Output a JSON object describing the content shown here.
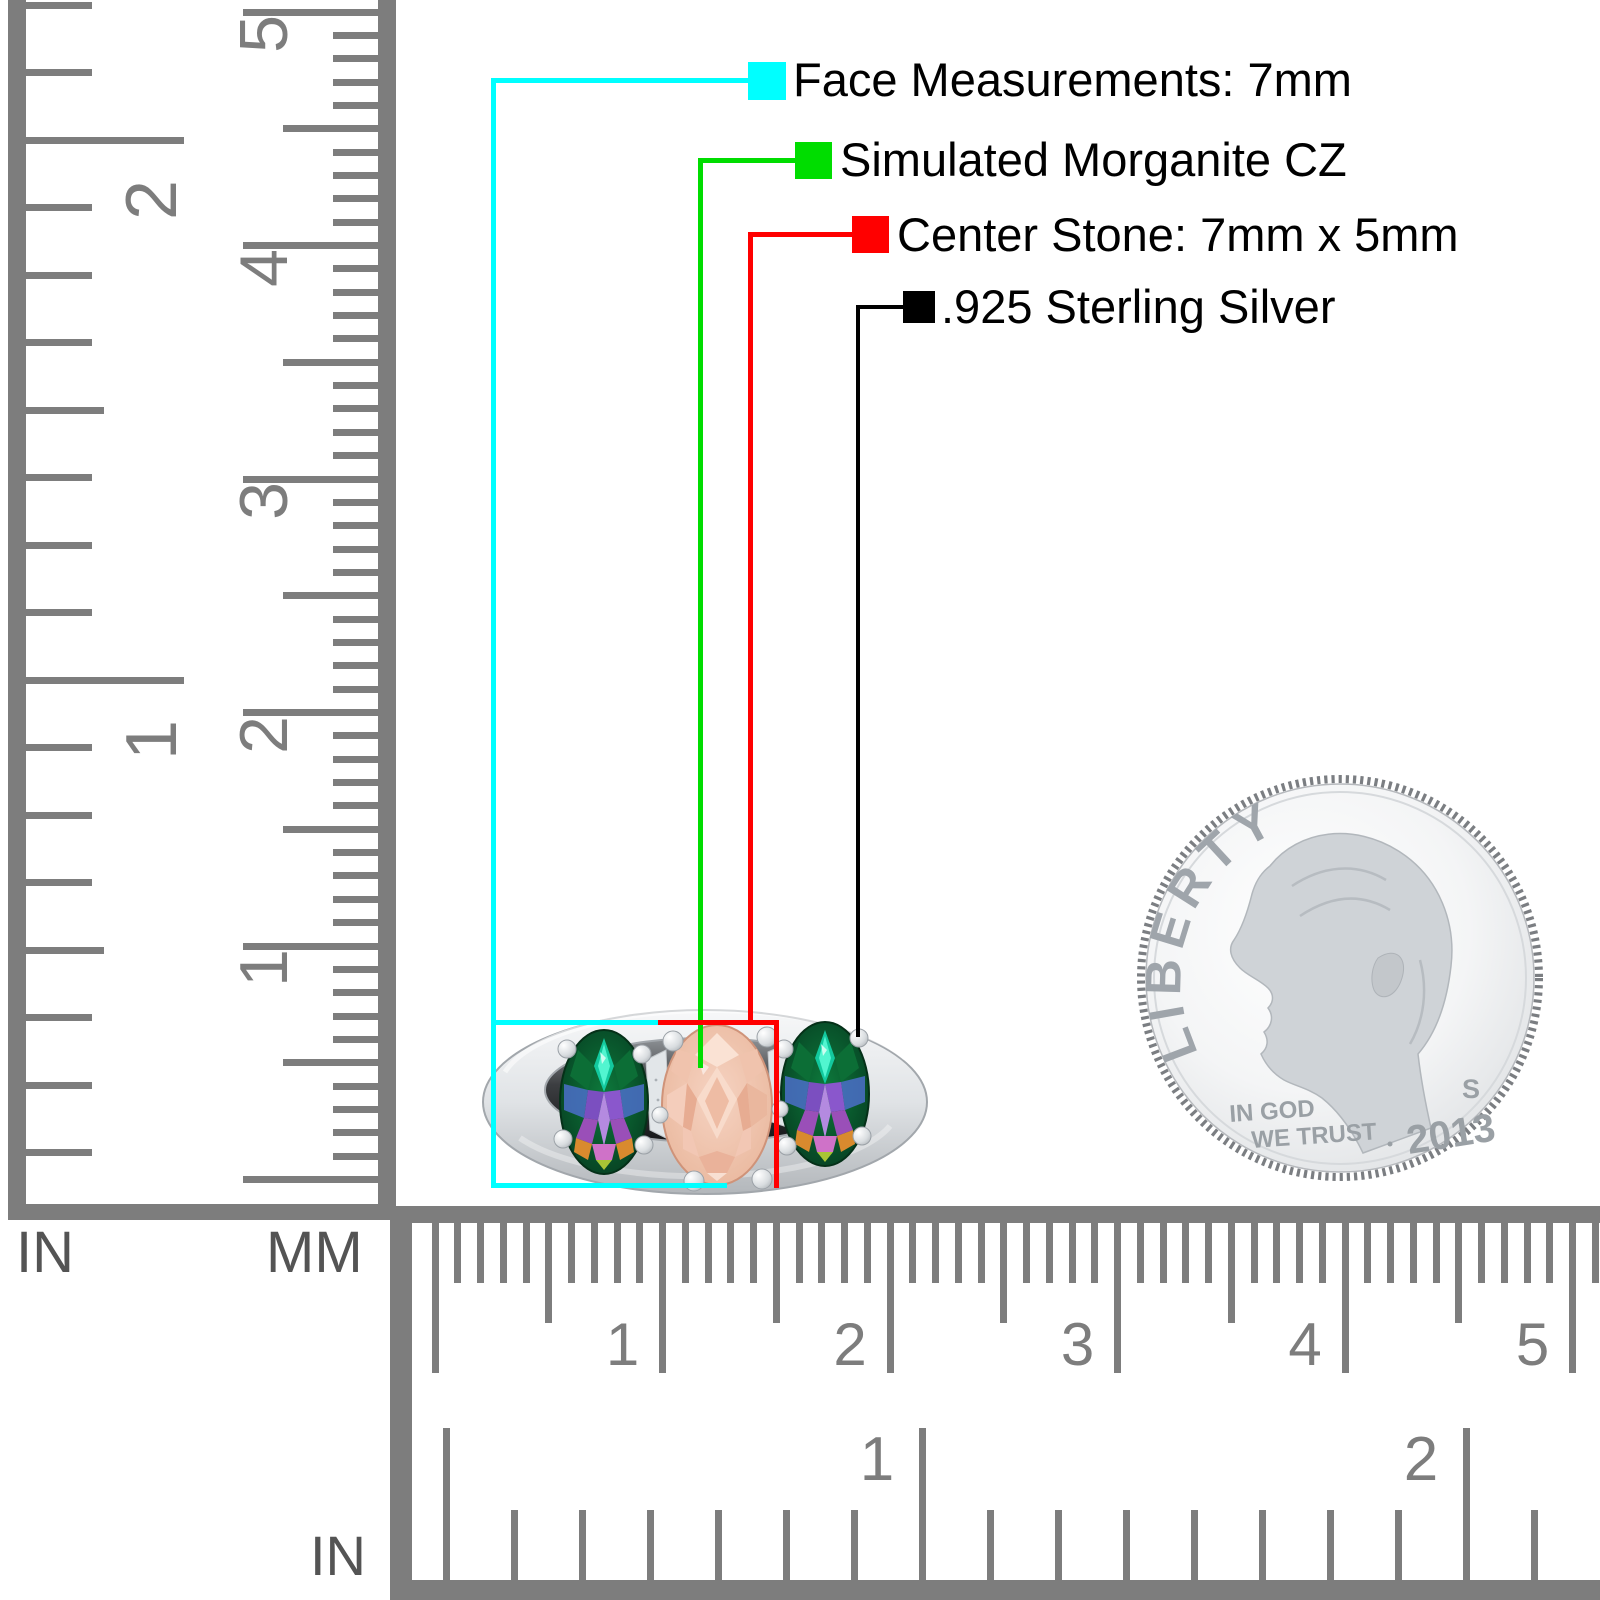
{
  "legend": {
    "items": [
      {
        "name": "face-measurements",
        "label": "Face Measurements: 7mm",
        "color": "#00ffff"
      },
      {
        "name": "simulated-morganite",
        "label": "Simulated Morganite CZ",
        "color": "#00dd00"
      },
      {
        "name": "center-stone",
        "label": "Center Stone: 7mm x 5mm",
        "color": "#ff0000"
      },
      {
        "name": "sterling-silver",
        "label": ".925 Sterling Silver",
        "color": "#000000"
      }
    ]
  },
  "rulers": {
    "left": {
      "inch_unit": "IN",
      "mm_unit": "MM",
      "inch_labels": [
        "2",
        "1"
      ],
      "cm_labels": [
        "5",
        "4",
        "3",
        "2",
        "1"
      ]
    },
    "bottom": {
      "inch_unit": "IN",
      "cm_labels": [
        "1",
        "2",
        "3",
        "4",
        "5"
      ],
      "inch_labels": [
        "1",
        "2"
      ]
    }
  },
  "coin": {
    "legend_text": "LIBERTY",
    "motto_line1": "IN GOD",
    "motto_line2": "WE TRUST",
    "mint_mark": "S",
    "year": "2013"
  }
}
